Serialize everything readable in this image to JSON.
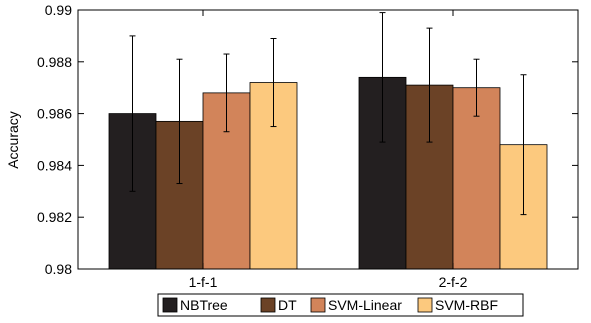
{
  "chart_data": {
    "type": "bar",
    "title": "",
    "xlabel": "",
    "ylabel": "Accuracy",
    "ylim": [
      0.98,
      0.99
    ],
    "yticks": [
      0.98,
      0.982,
      0.984,
      0.986,
      0.988,
      0.99
    ],
    "ytick_labels": [
      "0.98",
      "0.982",
      "0.984",
      "0.986",
      "0.988",
      "0.99"
    ],
    "categories": [
      "1-f-1",
      "2-f-2"
    ],
    "series": [
      {
        "name": "NBTree",
        "color": "#231f20",
        "values": [
          0.986,
          0.9874
        ],
        "err_low": [
          0.983,
          0.9849
        ],
        "err_high": [
          0.989,
          0.9899
        ]
      },
      {
        "name": "DT",
        "color": "#6b4226",
        "values": [
          0.9857,
          0.9871
        ],
        "err_low": [
          0.9833,
          0.9849
        ],
        "err_high": [
          0.9881,
          0.9893
        ]
      },
      {
        "name": "SVM-Linear",
        "color": "#d2845a",
        "values": [
          0.9868,
          0.987
        ],
        "err_low": [
          0.9853,
          0.9859
        ],
        "err_high": [
          0.9883,
          0.9881
        ]
      },
      {
        "name": "SVM-RBF",
        "color": "#fcc97e",
        "values": [
          0.9872,
          0.9848
        ],
        "err_low": [
          0.9855,
          0.9821
        ],
        "err_high": [
          0.9889,
          0.9875
        ]
      }
    ],
    "grid": false,
    "error_bars": true,
    "legend_position": "bottom"
  }
}
